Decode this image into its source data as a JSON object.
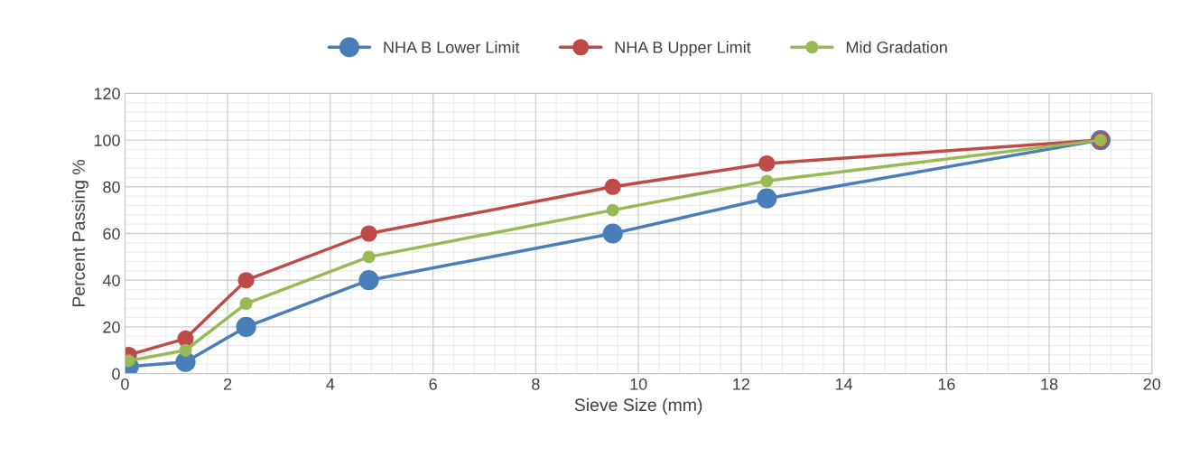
{
  "chart_data": {
    "type": "line",
    "xlabel": "Sieve Size (mm)",
    "ylabel": "Percent Passing %",
    "x": [
      0.075,
      1.18,
      2.36,
      4.75,
      9.5,
      12.5,
      19
    ],
    "series": [
      {
        "name": "NHA B Lower Limit",
        "color": "#4a7ebb",
        "values": [
          3,
          5,
          20,
          40,
          60,
          75,
          100
        ]
      },
      {
        "name": "NHA B Upper Limit",
        "color": "#be4b48",
        "values": [
          8,
          15,
          40,
          60,
          80,
          90,
          100
        ]
      },
      {
        "name": "Mid Gradation",
        "color": "#98b954",
        "values": [
          5.5,
          10,
          30,
          50,
          70,
          82.5,
          100
        ]
      }
    ],
    "xlim": [
      0,
      20
    ],
    "xticks": [
      0,
      2,
      4,
      6,
      8,
      10,
      12,
      14,
      16,
      18,
      20
    ],
    "ylim": [
      0,
      120
    ],
    "yticks": [
      0,
      20,
      40,
      60,
      80,
      100,
      120
    ],
    "grid": true,
    "legend": "top",
    "marker": "circle",
    "line_style": "solid"
  }
}
